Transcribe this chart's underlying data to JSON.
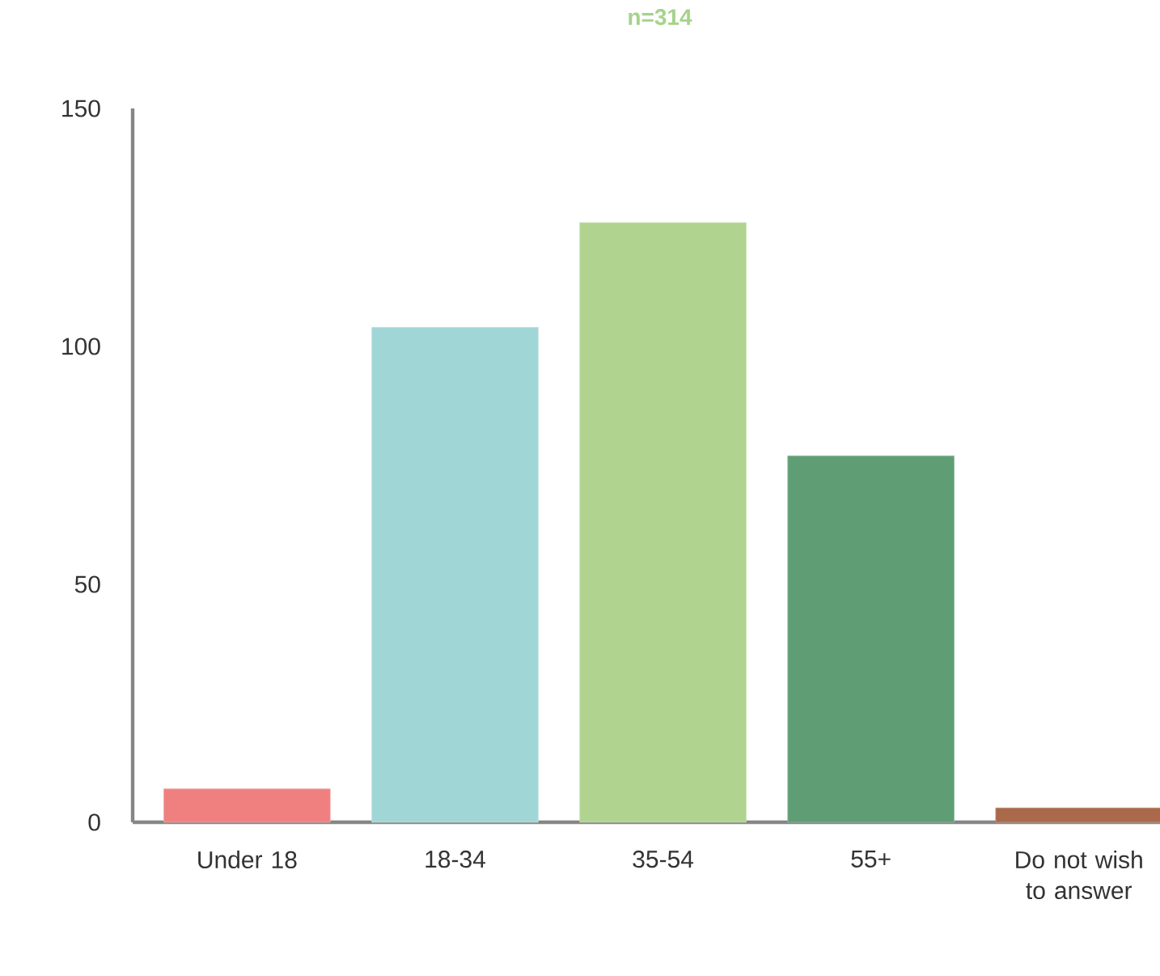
{
  "chart_data": {
    "type": "bar",
    "title": "n=314",
    "categories": [
      "Under 18",
      "18-34",
      "35-54",
      "55+",
      "Do not wish to answer"
    ],
    "values": [
      7,
      104,
      126,
      77,
      3
    ],
    "colors": [
      "#f08080",
      "#a0d6d6",
      "#b0d490",
      "#5f9e74",
      "#a9694a"
    ],
    "ylim": [
      0,
      150
    ],
    "yticks": [
      0,
      50,
      100,
      150
    ]
  }
}
